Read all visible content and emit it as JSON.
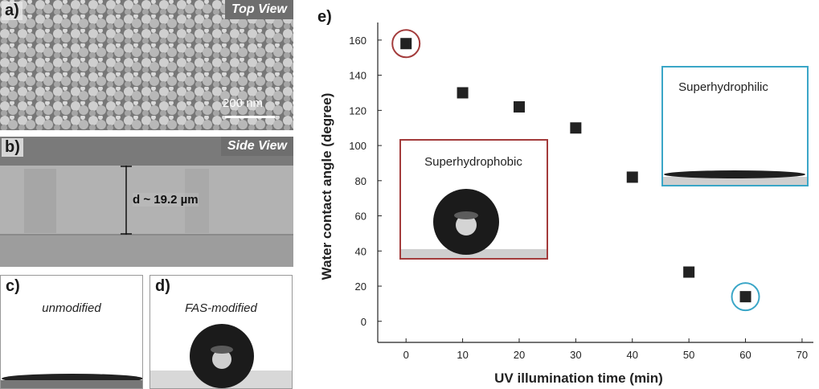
{
  "panels": {
    "a": {
      "label": "a)",
      "tag": "Top View",
      "scale": "200 nm"
    },
    "b": {
      "label": "b)",
      "tag": "Side View",
      "thickness": "d ~ 19.2 µm"
    },
    "c": {
      "label": "c)",
      "state": "unmodified"
    },
    "d": {
      "label": "d)",
      "state": "FAS-modified"
    },
    "e": {
      "label": "e)"
    }
  },
  "insets": {
    "hydrophobic": {
      "label": "Superhydrophobic",
      "border": "#a33b3b"
    },
    "hydrophilic": {
      "label": "Superhydrophilic",
      "border": "#3aa6c7"
    }
  },
  "chart_data": {
    "type": "scatter",
    "xlabel": "UV illumination time (min)",
    "ylabel": "Water contact angle (degree)",
    "xlim": [
      -5,
      72
    ],
    "ylim": [
      -12,
      170
    ],
    "xticks": [
      0,
      10,
      20,
      30,
      40,
      50,
      60,
      70
    ],
    "yticks": [
      0,
      20,
      40,
      60,
      80,
      100,
      120,
      140,
      160
    ],
    "x": [
      0,
      10,
      20,
      30,
      40,
      50,
      60
    ],
    "y": [
      158,
      130,
      122,
      110,
      82,
      28,
      14
    ],
    "highlighted": [
      {
        "x": 0,
        "y": 158,
        "color": "#a33b3b"
      },
      {
        "x": 60,
        "y": 14,
        "color": "#3aa6c7"
      }
    ],
    "marker_color": "#222222"
  }
}
